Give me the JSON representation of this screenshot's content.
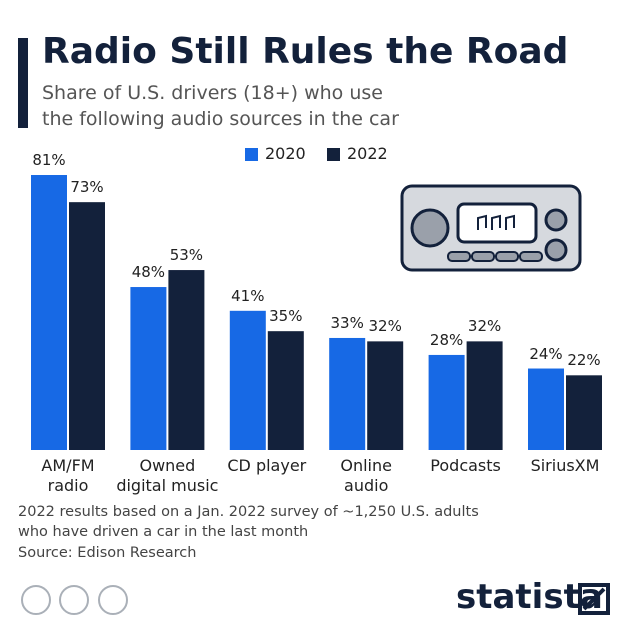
{
  "chart_data": {
    "type": "bar",
    "title": "Radio Still Rules the Road",
    "subtitle": [
      "Share of U.S. drivers (18+) who use",
      "the following audio sources in the car"
    ],
    "categories": [
      "AM/FM\nradio",
      "Owned\ndigital music",
      "CD player",
      "Online\naudio",
      "Podcasts",
      "SiriusXM"
    ],
    "series": [
      {
        "name": "2020",
        "color": "#1769e5",
        "values": [
          81,
          48,
          41,
          33,
          28,
          24
        ],
        "value_labels": [
          "81%",
          "48%",
          "41%",
          "33%",
          "28%",
          "24%"
        ]
      },
      {
        "name": "2022",
        "color": "#13213b",
        "values": [
          73,
          53,
          35,
          32,
          32,
          22
        ],
        "value_labels": [
          "73%",
          "53%",
          "35%",
          "32%",
          "32%",
          "22%"
        ]
      }
    ],
    "notes": [
      "2022 results based on a Jan. 2022 survey of ~1,250 U.S. adults",
      "who have driven a car in the last month"
    ],
    "source": "Source: Edison Research",
    "brand": "statista"
  }
}
